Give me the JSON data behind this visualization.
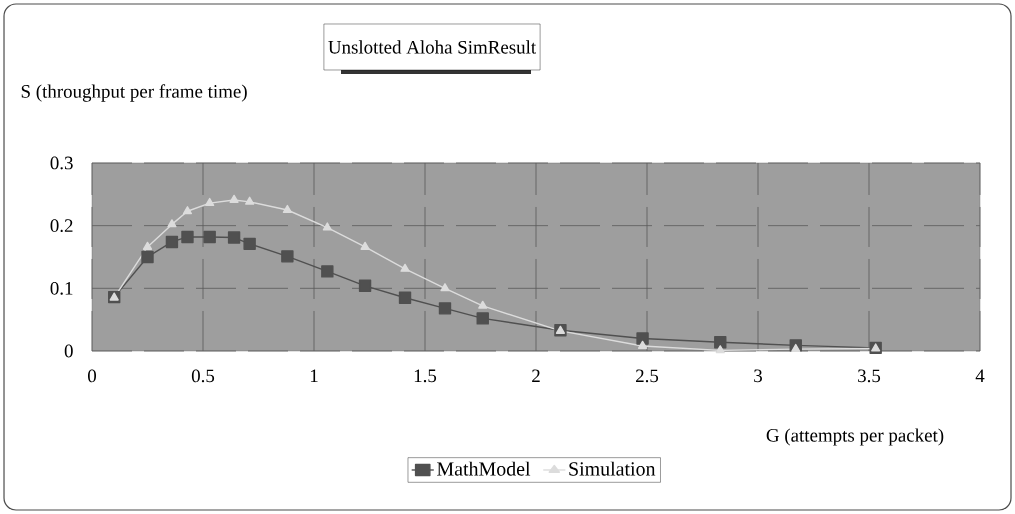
{
  "chart_data": {
    "type": "line",
    "title": "Unslotted Aloha SimResult",
    "xlabel": "G (attempts per packet)",
    "ylabel": "S (throughput per frame time)",
    "x": [
      0.1,
      0.25,
      0.36,
      0.43,
      0.53,
      0.64,
      0.71,
      0.88,
      1.06,
      1.23,
      1.41,
      1.59,
      1.76,
      2.11,
      2.48,
      2.83,
      3.17,
      3.53
    ],
    "series": [
      {
        "name": "MathModel",
        "color": "#505050",
        "marker": "square",
        "values": [
          0.086,
          0.15,
          0.174,
          0.182,
          0.182,
          0.181,
          0.171,
          0.151,
          0.127,
          0.104,
          0.085,
          0.068,
          0.052,
          0.033,
          0.02,
          0.014,
          0.009,
          0.005
        ]
      },
      {
        "name": "Simulation",
        "color": "#dcdcdc",
        "marker": "triangle",
        "values": [
          0.085,
          0.166,
          0.202,
          0.223,
          0.236,
          0.241,
          0.238,
          0.225,
          0.197,
          0.166,
          0.131,
          0.1,
          0.072,
          0.032,
          0.008,
          0.001,
          0.003,
          0.004
        ]
      }
    ],
    "xlim": [
      0,
      4
    ],
    "ylim": [
      0,
      0.3
    ],
    "xticks": [
      0,
      0.5,
      1,
      1.5,
      2,
      2.5,
      3,
      3.5,
      4
    ],
    "yticks": [
      0,
      0.1,
      0.2,
      0.3
    ],
    "grid": true,
    "legend": "bottom",
    "line_style": "solid"
  }
}
